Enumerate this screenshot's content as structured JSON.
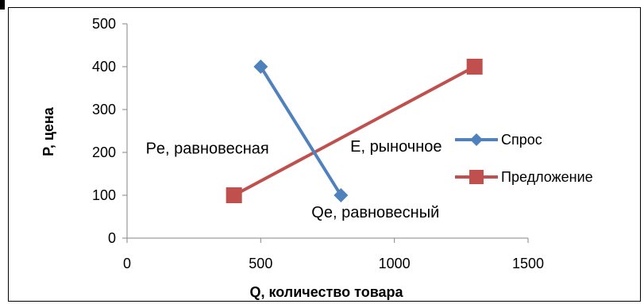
{
  "chart_data": {
    "type": "line",
    "title": "",
    "xlabel": "Q, количество товара",
    "ylabel": "P, цена",
    "xlim": [
      0,
      1500
    ],
    "ylim": [
      0,
      500
    ],
    "x_ticks": [
      0,
      500,
      1000,
      1500
    ],
    "y_ticks": [
      0,
      100,
      200,
      300,
      400,
      500
    ],
    "x_tick_labels": [
      "0",
      "500",
      "1000",
      "1500"
    ],
    "y_tick_labels": [
      "0",
      "100",
      "200",
      "300",
      "400",
      "500"
    ],
    "grid": false,
    "legend_position": "right",
    "series": [
      {
        "name": "Спрос",
        "color": "#4F81BD",
        "marker": "diamond",
        "points": [
          {
            "x": 500,
            "y": 400
          },
          {
            "x": 800,
            "y": 100
          }
        ]
      },
      {
        "name": "Предложение",
        "color": "#C0504D",
        "marker": "square",
        "points": [
          {
            "x": 400,
            "y": 100
          },
          {
            "x": 1300,
            "y": 400
          }
        ]
      }
    ],
    "annotations": [
      {
        "text": "Pe, равновесная",
        "x": 70,
        "y": 197
      },
      {
        "text": "E, рыночное",
        "x": 835,
        "y": 202
      },
      {
        "text": "Qe, равновесный",
        "x": 690,
        "y": 48
      }
    ]
  }
}
